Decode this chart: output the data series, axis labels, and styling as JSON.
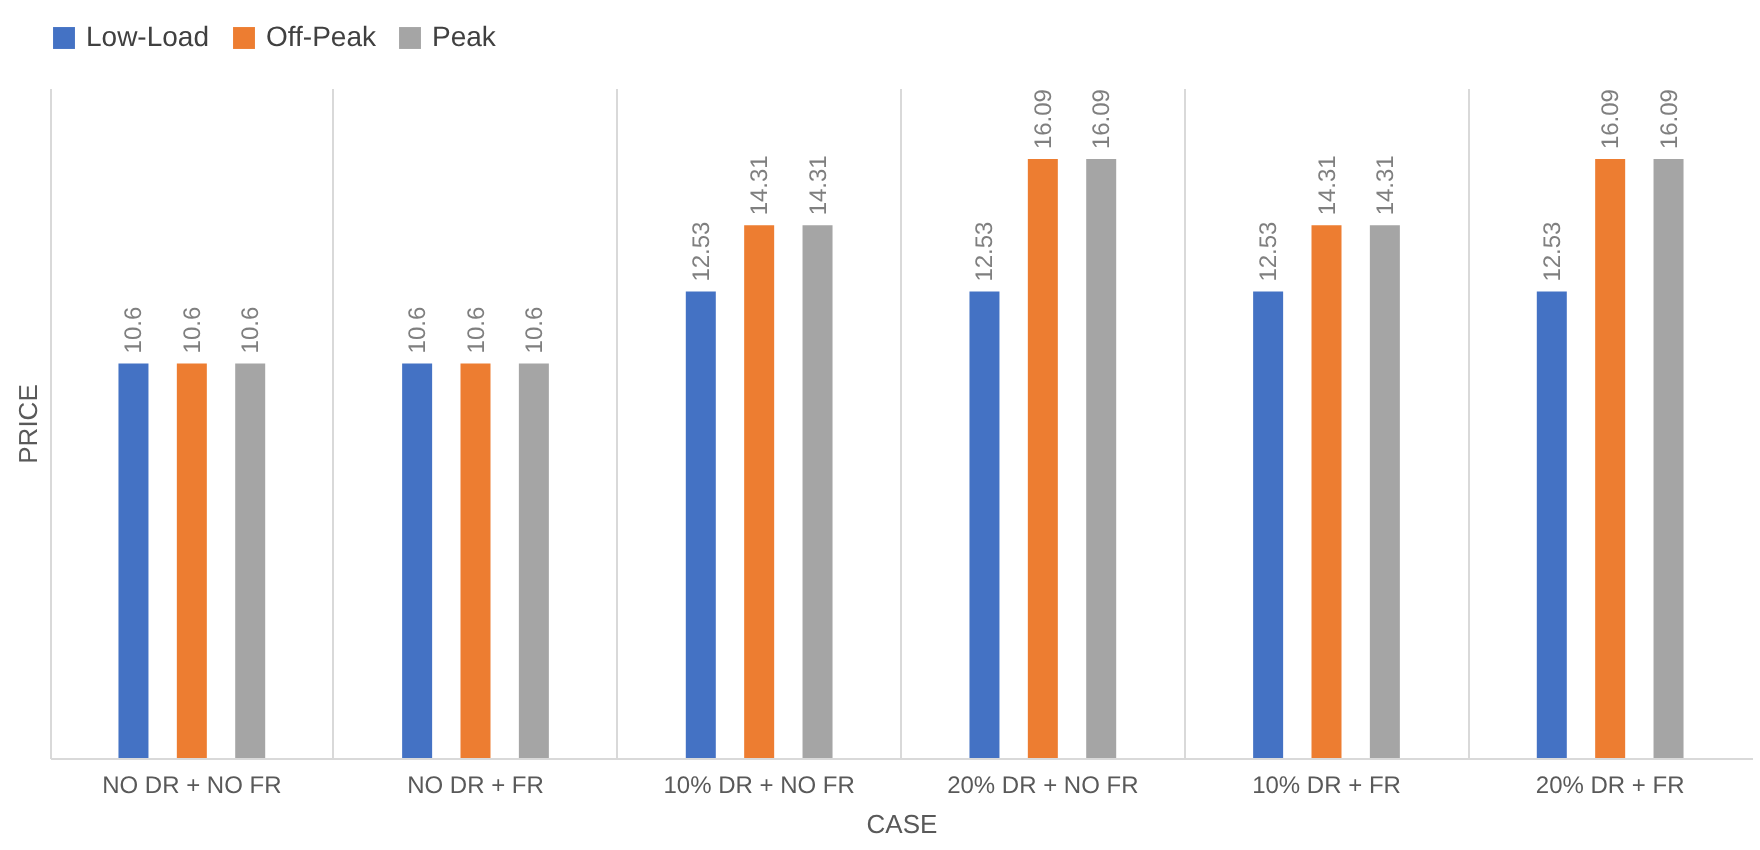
{
  "chart_data": {
    "type": "bar",
    "xlabel": "CASE",
    "ylabel": "PRICE",
    "categories": [
      "NO DR + NO FR",
      "NO DR + FR",
      "10% DR + NO FR",
      "20% DR + NO FR",
      "10% DR + FR",
      "20% DR + FR"
    ],
    "series": [
      {
        "name": "Low-Load",
        "color": "#4472c4",
        "values": [
          10.6,
          10.6,
          12.53,
          12.53,
          12.53,
          12.53
        ]
      },
      {
        "name": "Off-Peak",
        "color": "#ed7d31",
        "values": [
          10.6,
          10.6,
          14.31,
          16.09,
          14.31,
          16.09
        ]
      },
      {
        "name": "Peak",
        "color": "#a5a5a5",
        "values": [
          10.6,
          10.6,
          14.31,
          16.09,
          14.31,
          16.09
        ]
      }
    ],
    "ylim": [
      0,
      18
    ],
    "data_labels": true,
    "legend": "top",
    "grid": "x",
    "tick_labels": "x"
  }
}
